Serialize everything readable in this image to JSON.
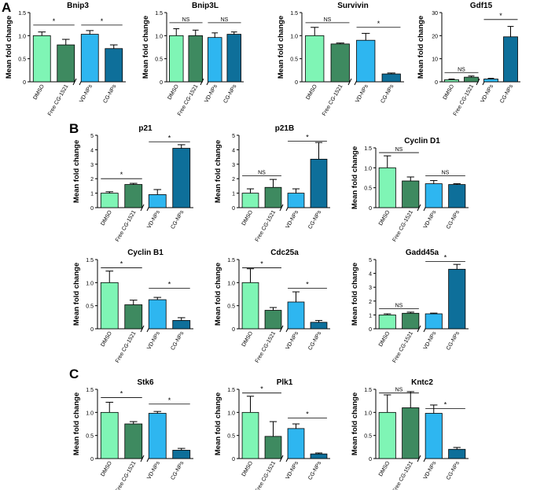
{
  "panel_labels": [
    "A",
    "B",
    "C"
  ],
  "colors": {
    "DMSO": "#7ff5b5",
    "Free CG-1521": "#3e8a60",
    "VD-NPs": "#2eb6f0",
    "CG-NPs": "#0e6f9a"
  },
  "chart_data": [
    {
      "type": "bar",
      "title": "Bnip3",
      "ylabel": "Mean fold change",
      "ylim": [
        0,
        1.5
      ],
      "yticks": [
        "0",
        "0.5",
        "1.0",
        "1.5"
      ],
      "categories": [
        "DMSO",
        "Free CG-1521",
        "VD-NPs",
        "CG-NPs"
      ],
      "values": [
        1.0,
        0.8,
        1.03,
        0.72
      ],
      "errors": [
        0.08,
        0.12,
        0.08,
        0.08
      ],
      "annotations": [
        {
          "from": 0,
          "to": 1,
          "y": 1.23,
          "label": "*"
        },
        {
          "from": 2,
          "to": 3,
          "y": 1.23,
          "label": "*"
        }
      ]
    },
    {
      "type": "bar",
      "title": "Bnip3L",
      "ylabel": "Mean fold change",
      "ylim": [
        0,
        1.5
      ],
      "yticks": [
        "0",
        "0.5",
        "1.0",
        "1.5"
      ],
      "categories": [
        "DMSO",
        "Free CG-1521",
        "VD-NPs",
        "CG-NPs"
      ],
      "values": [
        1.0,
        1.0,
        0.96,
        1.03
      ],
      "errors": [
        0.15,
        0.12,
        0.1,
        0.05
      ],
      "annotations": [
        {
          "from": 0,
          "to": 1,
          "y": 1.28,
          "label": "NS"
        },
        {
          "from": 2,
          "to": 3,
          "y": 1.28,
          "label": "NS"
        }
      ]
    },
    {
      "type": "bar",
      "title": "Survivin",
      "ylabel": "Mean fold change",
      "ylim": [
        0,
        1.5
      ],
      "yticks": [
        "0",
        "0.5",
        "1.0",
        "1.5"
      ],
      "categories": [
        "DMSO",
        "Free CG-1521",
        "VD-NPs",
        "CG-NPs"
      ],
      "values": [
        1.0,
        0.82,
        0.9,
        0.17
      ],
      "errors": [
        0.18,
        0.02,
        0.15,
        0.02
      ],
      "annotations": [
        {
          "from": 0,
          "to": 1,
          "y": 1.28,
          "label": "NS"
        },
        {
          "from": 2,
          "to": 3,
          "y": 1.18,
          "label": "*"
        }
      ]
    },
    {
      "type": "bar",
      "title": "Gdf15",
      "ylabel": "Mean fold change",
      "ylim": [
        0,
        30
      ],
      "yticks": [
        "0",
        "10",
        "20",
        "30"
      ],
      "categories": [
        "DMSO",
        "Free CG-1521",
        "VD-NPs",
        "CG-NPs"
      ],
      "values": [
        0.9,
        2.0,
        1.2,
        19.5
      ],
      "errors": [
        0.3,
        0.5,
        0.3,
        4.5
      ],
      "annotations": [
        {
          "from": 0,
          "to": 1,
          "y": 4.0,
          "label": "NS"
        },
        {
          "from": 2,
          "to": 3,
          "y": 27,
          "label": "*"
        }
      ]
    },
    {
      "type": "bar",
      "title": "p21",
      "ylabel": "Mean fold change",
      "ylim": [
        0,
        5
      ],
      "yticks": [
        "0",
        "1",
        "2",
        "3",
        "4",
        "5"
      ],
      "categories": [
        "DMSO",
        "Free CG-1521",
        "VD-NPs",
        "CG-NPs"
      ],
      "values": [
        1.0,
        1.6,
        0.9,
        4.1
      ],
      "errors": [
        0.1,
        0.08,
        0.35,
        0.25
      ],
      "annotations": [
        {
          "from": 0,
          "to": 1,
          "y": 2.0,
          "label": "*"
        },
        {
          "from": 2,
          "to": 3,
          "y": 4.55,
          "label": "*"
        }
      ]
    },
    {
      "type": "bar",
      "title": "p21B",
      "ylabel": "Mean fold change",
      "ylim": [
        0,
        5
      ],
      "yticks": [
        "0",
        "1",
        "2",
        "3",
        "4",
        "5"
      ],
      "categories": [
        "DMSO",
        "Free CG-1521",
        "VD-NPs",
        "CG-NPs"
      ],
      "values": [
        1.0,
        1.4,
        1.0,
        3.35
      ],
      "errors": [
        0.3,
        0.55,
        0.3,
        1.15
      ],
      "annotations": [
        {
          "from": 0,
          "to": 1,
          "y": 2.2,
          "label": "NS"
        },
        {
          "from": 2,
          "to": 3,
          "y": 4.6,
          "label": "*"
        }
      ]
    },
    {
      "type": "bar",
      "title": "Cyclin D1",
      "ylabel": "Mean fold change",
      "ylim": [
        0,
        1.5
      ],
      "yticks": [
        "0",
        "0.5",
        "1.0",
        "1.5"
      ],
      "categories": [
        "DMSO",
        "Free CG-1521",
        "VD-NPs",
        "CG-NPs"
      ],
      "values": [
        1.0,
        0.67,
        0.6,
        0.58
      ],
      "errors": [
        0.3,
        0.1,
        0.08,
        0.02
      ],
      "annotations": [
        {
          "from": 0,
          "to": 1,
          "y": 1.38,
          "label": "NS"
        },
        {
          "from": 2,
          "to": 3,
          "y": 0.8,
          "label": "NS"
        }
      ]
    },
    {
      "type": "bar",
      "title": "Cyclin B1",
      "ylabel": "Mean fold change",
      "ylim": [
        0,
        1.5
      ],
      "yticks": [
        "0",
        "0.5",
        "1.0",
        "1.5"
      ],
      "categories": [
        "DMSO",
        "Free CG-1521",
        "VD-NPs",
        "CG-NPs"
      ],
      "values": [
        1.0,
        0.52,
        0.63,
        0.18
      ],
      "errors": [
        0.25,
        0.1,
        0.05,
        0.06
      ],
      "annotations": [
        {
          "from": 0,
          "to": 1,
          "y": 1.32,
          "label": "*"
        },
        {
          "from": 2,
          "to": 3,
          "y": 0.88,
          "label": "*"
        }
      ]
    },
    {
      "type": "bar",
      "title": "Cdc25a",
      "ylabel": "Mean fold change",
      "ylim": [
        0,
        1.5
      ],
      "yticks": [
        "0",
        "0.5",
        "1.0",
        "1.5"
      ],
      "categories": [
        "DMSO",
        "Free CG-1521",
        "VD-NPs",
        "CG-NPs"
      ],
      "values": [
        1.0,
        0.4,
        0.58,
        0.14
      ],
      "errors": [
        0.3,
        0.06,
        0.22,
        0.04
      ],
      "annotations": [
        {
          "from": 0,
          "to": 1,
          "y": 1.32,
          "label": "*"
        },
        {
          "from": 2,
          "to": 3,
          "y": 0.88,
          "label": "*"
        }
      ]
    },
    {
      "type": "bar",
      "title": "Gadd45a",
      "ylabel": "Mean fold change",
      "ylim": [
        0,
        5
      ],
      "yticks": [
        "0",
        "1",
        "2",
        "3",
        "4",
        "5"
      ],
      "categories": [
        "DMSO",
        "Free CG-1521",
        "VD-NPs",
        "CG-NPs"
      ],
      "values": [
        1.0,
        1.12,
        1.08,
        4.3
      ],
      "errors": [
        0.08,
        0.08,
        0.05,
        0.35
      ],
      "annotations": [
        {
          "from": 0,
          "to": 1,
          "y": 1.45,
          "label": "NS"
        },
        {
          "from": 2,
          "to": 3,
          "y": 4.85,
          "label": "*"
        }
      ]
    },
    {
      "type": "bar",
      "title": "Stk6",
      "ylabel": "Mean fold change",
      "ylim": [
        0,
        1.5
      ],
      "yticks": [
        "0",
        "0.5",
        "1.0",
        "1.5"
      ],
      "categories": [
        "DMSO",
        "Free CG-1521",
        "VD-NPs",
        "CG-NPs"
      ],
      "values": [
        1.0,
        0.75,
        0.98,
        0.18
      ],
      "errors": [
        0.22,
        0.05,
        0.04,
        0.04
      ],
      "annotations": [
        {
          "from": 0,
          "to": 1,
          "y": 1.32,
          "label": "*"
        },
        {
          "from": 2,
          "to": 3,
          "y": 1.18,
          "label": "*"
        }
      ]
    },
    {
      "type": "bar",
      "title": "Plk1",
      "ylabel": "Mean fold change",
      "ylim": [
        0,
        1.5
      ],
      "yticks": [
        "0",
        "0.5",
        "1.0",
        "1.5"
      ],
      "categories": [
        "DMSO",
        "Free CG-1521",
        "VD-NPs",
        "CG-NPs"
      ],
      "values": [
        1.0,
        0.48,
        0.65,
        0.1
      ],
      "errors": [
        0.35,
        0.32,
        0.1,
        0.02
      ],
      "annotations": [
        {
          "from": 0,
          "to": 1,
          "y": 1.42,
          "label": "*"
        },
        {
          "from": 2,
          "to": 3,
          "y": 0.88,
          "label": "*"
        }
      ]
    },
    {
      "type": "bar",
      "title": "Kntc2",
      "ylabel": "Mean fold change",
      "ylim": [
        0,
        1.5
      ],
      "yticks": [
        "0",
        "0.5",
        "1.0",
        "1.5"
      ],
      "categories": [
        "DMSO",
        "Free CG-1521",
        "VD-NPs",
        "CG-NPs"
      ],
      "values": [
        1.0,
        1.1,
        0.98,
        0.2
      ],
      "errors": [
        0.38,
        0.35,
        0.18,
        0.04
      ],
      "annotations": [
        {
          "from": 0,
          "to": 1,
          "y": 1.42,
          "label": "NS"
        },
        {
          "from": 2,
          "to": 3,
          "y": 1.08,
          "label": "*"
        }
      ]
    }
  ]
}
